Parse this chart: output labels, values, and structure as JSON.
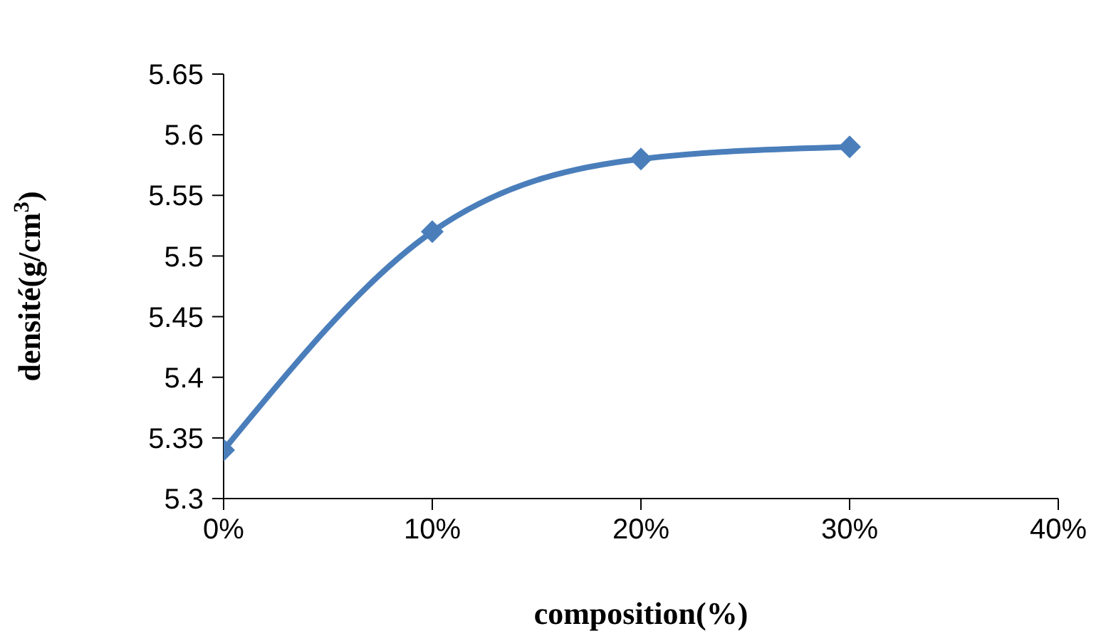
{
  "chart_data": {
    "type": "line",
    "xlabel": "composition(%)",
    "ylabel": "densité(g/cm$^{3}$)",
    "x": [
      0,
      10,
      20,
      30
    ],
    "series": [
      {
        "color": "#4a7ebb",
        "values": [
          5.34,
          5.52,
          5.58,
          5.59
        ]
      }
    ],
    "xlim": [
      0,
      40
    ],
    "xticks": [
      {
        "value": 0,
        "label": "0%"
      },
      {
        "value": 10,
        "label": "10%"
      },
      {
        "value": 20,
        "label": "20%"
      },
      {
        "value": 30,
        "label": "30%"
      },
      {
        "value": 40,
        "label": "40%"
      }
    ],
    "ylim": [
      5.3,
      5.65
    ],
    "yticks": [
      5.3,
      {
        "value": 5.35,
        "label": "5.35"
      },
      5.4,
      5.45,
      5.5,
      5.55,
      5.6,
      5.65
    ],
    "grid": false,
    "legend": false,
    "marker": "diamond",
    "line_style": "solid"
  }
}
